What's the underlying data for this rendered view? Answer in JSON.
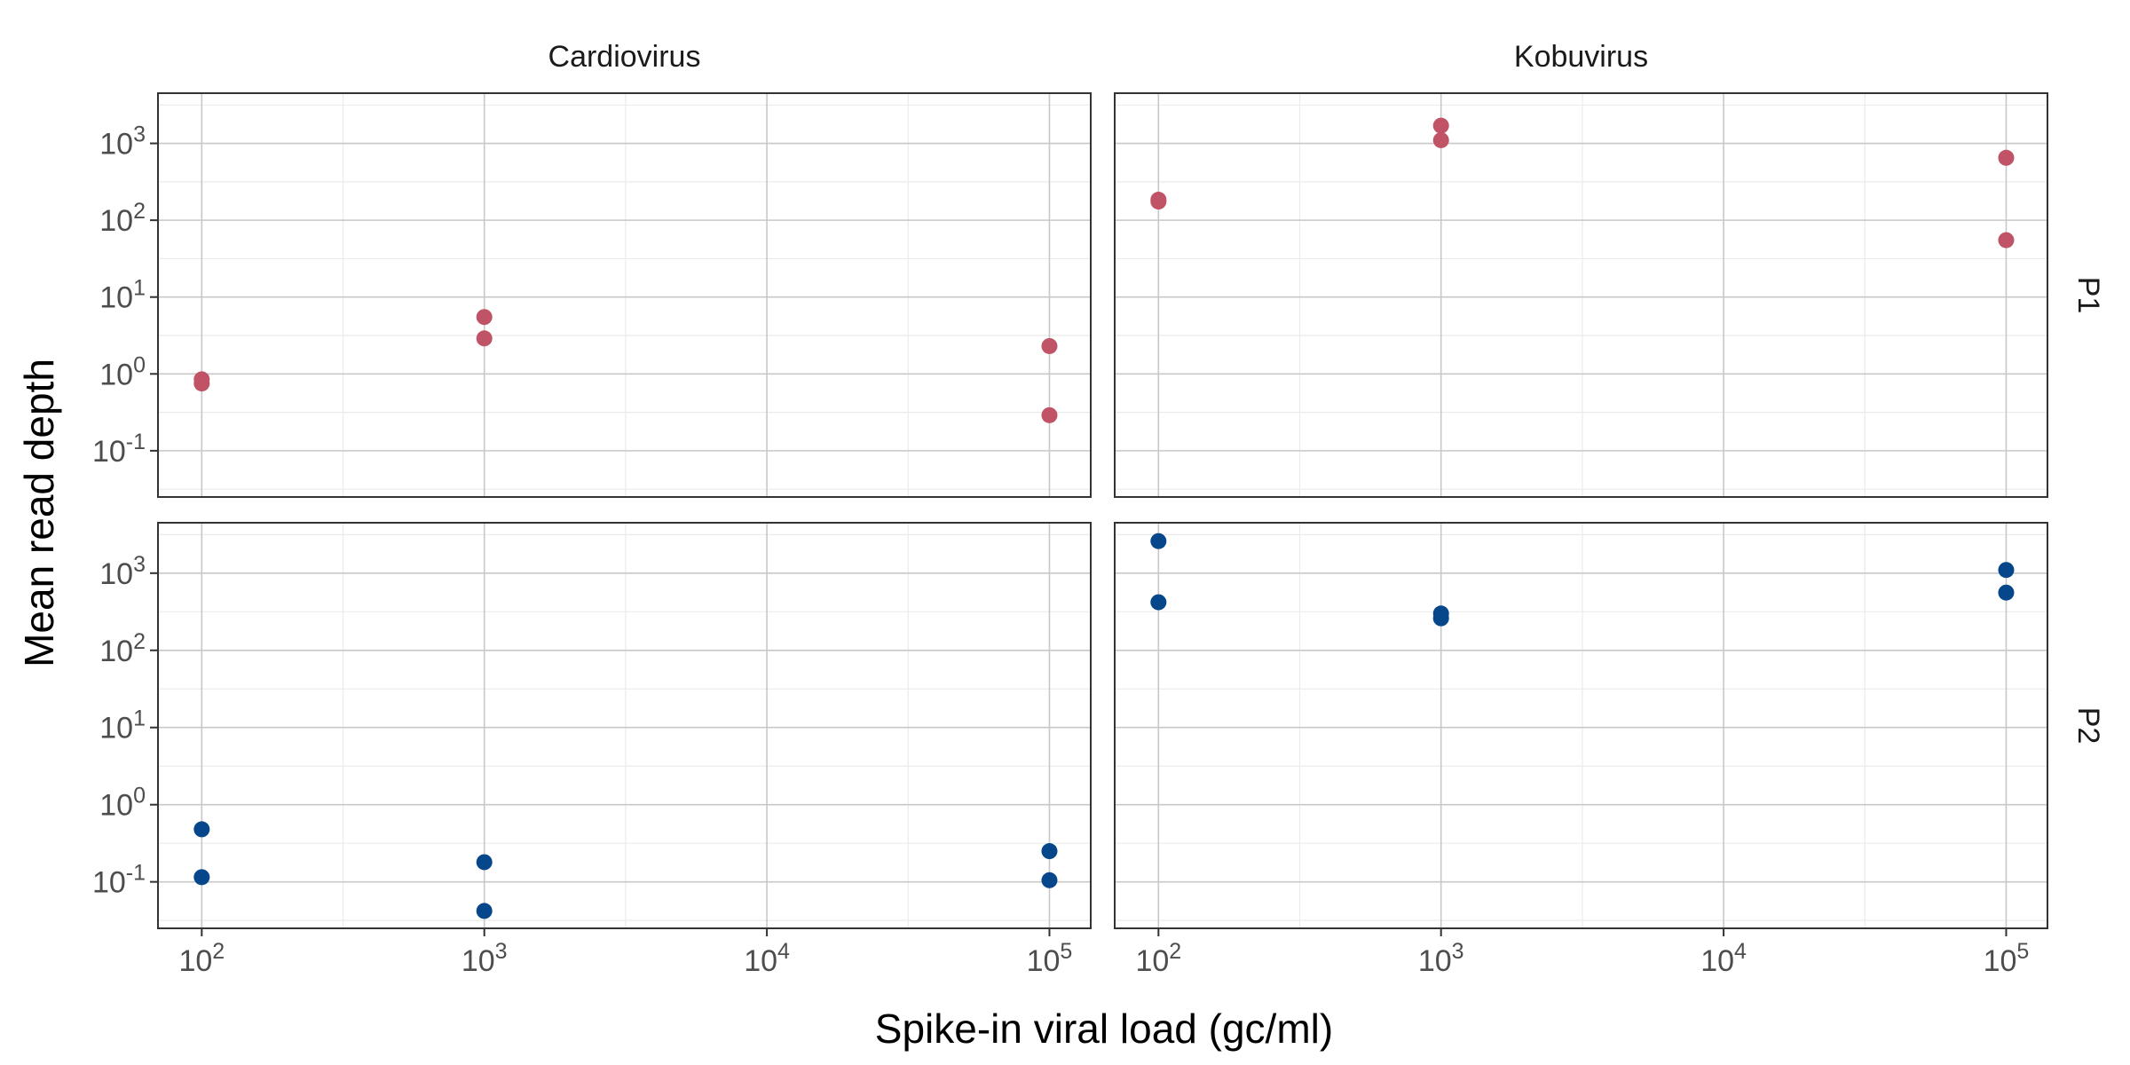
{
  "chart_data": {
    "type": "scatter",
    "xlabel": "Spike-in viral load (gc/ml)",
    "ylabel": "Mean read depth",
    "x_scale": "log10",
    "y_scale": "log10",
    "xlim": [
      70,
      140000
    ],
    "ylim": [
      0.025,
      4500
    ],
    "x_ticks": [
      {
        "value": 100,
        "base": "10",
        "exp": "2"
      },
      {
        "value": 1000,
        "base": "10",
        "exp": "3"
      },
      {
        "value": 10000,
        "base": "10",
        "exp": "4"
      },
      {
        "value": 100000,
        "base": "10",
        "exp": "5"
      }
    ],
    "y_ticks": [
      {
        "value": 1000,
        "base": "10",
        "exp": "3"
      },
      {
        "value": 100,
        "base": "10",
        "exp": "2"
      },
      {
        "value": 10,
        "base": "10",
        "exp": "1"
      },
      {
        "value": 1,
        "base": "10",
        "exp": "0"
      },
      {
        "value": 0.1,
        "base": "10",
        "exp": "-1"
      }
    ],
    "columns": [
      "Cardiovirus",
      "Kobuvirus"
    ],
    "rows": [
      "P1",
      "P2"
    ],
    "grid": true,
    "legend": "none",
    "colors": {
      "P1": "#C05365",
      "P2": "#05478A"
    },
    "panels": [
      {
        "column": "Cardiovirus",
        "row": "P1",
        "points": [
          {
            "x": 100,
            "y": 0.85
          },
          {
            "x": 100,
            "y": 0.75
          },
          {
            "x": 1000,
            "y": 5.5
          },
          {
            "x": 1000,
            "y": 2.9
          },
          {
            "x": 100000,
            "y": 2.3
          },
          {
            "x": 100000,
            "y": 0.29
          }
        ]
      },
      {
        "column": "Kobuvirus",
        "row": "P1",
        "points": [
          {
            "x": 100,
            "y": 185
          },
          {
            "x": 100,
            "y": 175
          },
          {
            "x": 1000,
            "y": 1700
          },
          {
            "x": 1000,
            "y": 1100
          },
          {
            "x": 100000,
            "y": 650
          },
          {
            "x": 100000,
            "y": 55
          }
        ]
      },
      {
        "column": "Cardiovirus",
        "row": "P2",
        "points": [
          {
            "x": 100,
            "y": 0.48
          },
          {
            "x": 100,
            "y": 0.115
          },
          {
            "x": 1000,
            "y": 0.18
          },
          {
            "x": 1000,
            "y": 0.042
          },
          {
            "x": 100000,
            "y": 0.25
          },
          {
            "x": 100000,
            "y": 0.105
          }
        ]
      },
      {
        "column": "Kobuvirus",
        "row": "P2",
        "points": [
          {
            "x": 100,
            "y": 2600
          },
          {
            "x": 100,
            "y": 420
          },
          {
            "x": 1000,
            "y": 300
          },
          {
            "x": 1000,
            "y": 260
          },
          {
            "x": 100000,
            "y": 1100
          },
          {
            "x": 100000,
            "y": 560
          }
        ]
      }
    ]
  }
}
